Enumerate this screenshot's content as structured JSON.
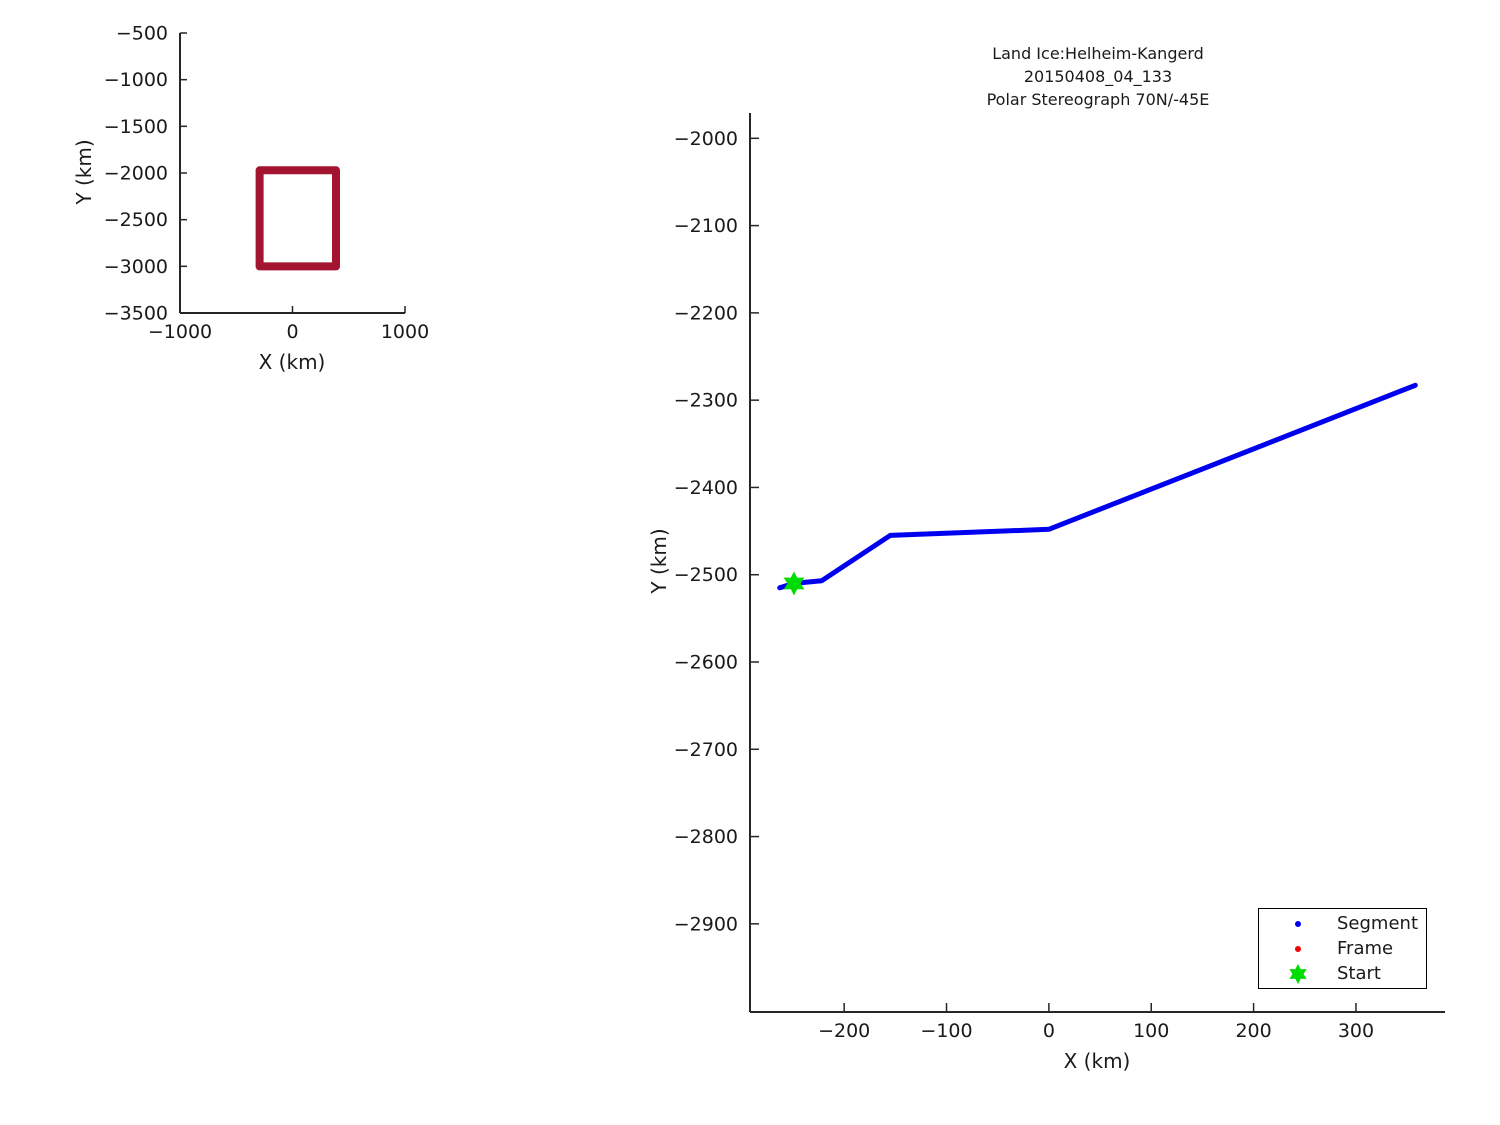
{
  "chart_data": [
    {
      "id": "overview",
      "type": "line",
      "title": "",
      "xlabel": "X (km)",
      "ylabel": "Y (km)",
      "xlim": [
        -1000,
        1000
      ],
      "ylim": [
        -3500,
        -500
      ],
      "xticks": [
        -1000,
        0,
        1000
      ],
      "yticks": [
        -500,
        -1000,
        -1500,
        -2000,
        -2500,
        -3000,
        -3500
      ],
      "grid": false,
      "series": [
        {
          "name": "main-view-extent-box",
          "color": "#A2142F",
          "line_width": 8,
          "x": [
            -292,
            -292,
            387,
            387,
            -292
          ],
          "y": [
            -3001,
            -1971,
            -1971,
            -3001,
            -3001
          ]
        }
      ]
    },
    {
      "id": "ground-track",
      "type": "line",
      "title_lines": [
        "Land Ice:Helheim-Kangerd",
        "20150408_04_133",
        "Polar Stereograph 70N/-45E"
      ],
      "xlabel": "X (km)",
      "ylabel": "Y (km)",
      "xlim": [
        -292,
        387
      ],
      "ylim": [
        -3001,
        -1971
      ],
      "xticks": [
        -200,
        -100,
        0,
        100,
        200,
        300
      ],
      "yticks": [
        -2000,
        -2100,
        -2200,
        -2300,
        -2400,
        -2500,
        -2600,
        -2700,
        -2800,
        -2900
      ],
      "grid": false,
      "legend": {
        "position": "bottom-right",
        "entries": [
          {
            "label": "Segment",
            "marker": "dot",
            "color": "#0000F0"
          },
          {
            "label": "Frame",
            "marker": "dot",
            "color": "#F00000"
          },
          {
            "label": "Start",
            "marker": "hexagram",
            "color": "#00DC00"
          }
        ]
      },
      "series": [
        {
          "name": "Segment",
          "color": "#0000F0",
          "line_width": 5,
          "x": [
            -263,
            -249,
            -222,
            -155,
            0,
            358
          ],
          "y": [
            -2515,
            -2510,
            -2507,
            -2455,
            -2448,
            -2283
          ]
        },
        {
          "name": "Frame",
          "color": "#F00000",
          "line_width": 0,
          "x": [],
          "y": []
        },
        {
          "name": "Start",
          "color": "#00DC00",
          "marker": "hexagram",
          "marker_size": 24,
          "x": [
            -249
          ],
          "y": [
            -2510
          ]
        }
      ]
    }
  ]
}
